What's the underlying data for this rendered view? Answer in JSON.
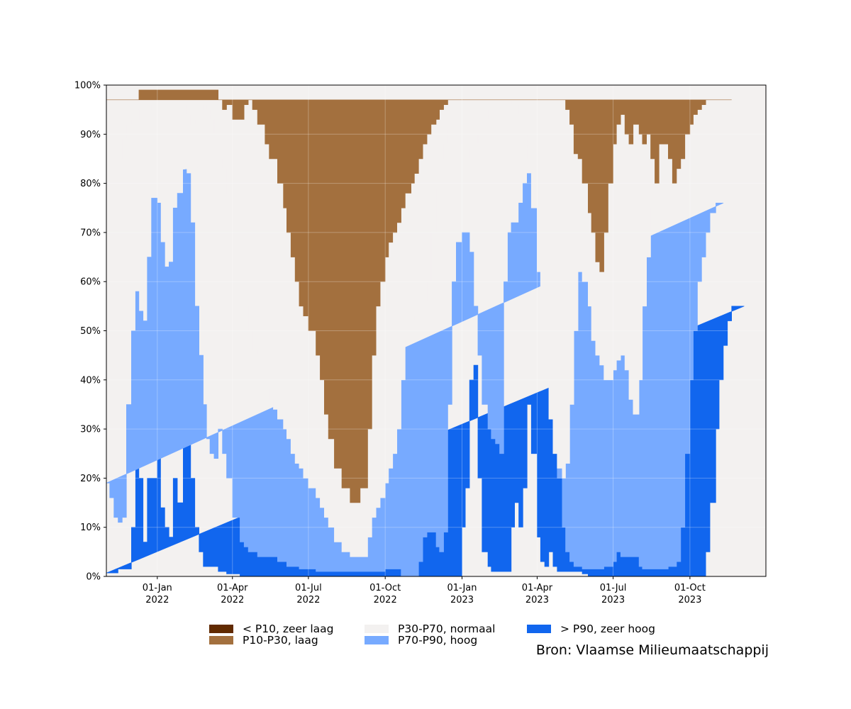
{
  "chart_data": {
    "type": "area",
    "stacked": true,
    "percent": true,
    "title": "",
    "xlabel": "",
    "ylabel": "",
    "x_range": [
      "2021-11-01",
      "2023-12-31"
    ],
    "ylim": [
      0,
      100
    ],
    "yticks": [
      {
        "value": 0,
        "label": "0%"
      },
      {
        "value": 10,
        "label": "10%"
      },
      {
        "value": 20,
        "label": "20%"
      },
      {
        "value": 30,
        "label": "30%"
      },
      {
        "value": 40,
        "label": "40%"
      },
      {
        "value": 50,
        "label": "50%"
      },
      {
        "value": 60,
        "label": "60%"
      },
      {
        "value": 70,
        "label": "70%"
      },
      {
        "value": 80,
        "label": "80%"
      },
      {
        "value": 90,
        "label": "90%"
      },
      {
        "value": 100,
        "label": "100%"
      }
    ],
    "xticks": [
      {
        "date": "2022-01-01",
        "label1": "01-Jan",
        "label2": "2022"
      },
      {
        "date": "2022-04-01",
        "label1": "01-Apr",
        "label2": "2022"
      },
      {
        "date": "2022-07-01",
        "label1": "01-Jul",
        "label2": "2022"
      },
      {
        "date": "2022-10-01",
        "label1": "01-Oct",
        "label2": "2022"
      },
      {
        "date": "2023-01-01",
        "label1": "01-Jan",
        "label2": "2023"
      },
      {
        "date": "2023-04-01",
        "label1": "01-Apr",
        "label2": "2023"
      },
      {
        "date": "2023-07-01",
        "label1": "01-Jul",
        "label2": "2023"
      },
      {
        "date": "2023-10-01",
        "label1": "01-Oct",
        "label2": "2023"
      }
    ],
    "grid": true,
    "legend_position": "bottom",
    "series": [
      {
        "name": "> P90, zeer hoog",
        "color": "#1166ee"
      },
      {
        "name": "P70-P90, hoog",
        "color": "#77aaff"
      },
      {
        "name": "P30-P70, normaal",
        "color": "#f3f1f0"
      },
      {
        "name": "P10-P30, laag",
        "color": "#a3703e"
      },
      {
        "name": "< P10, zeer laag",
        "color": "#612a00"
      }
    ],
    "boundaries_note": "Cumulative boundaries in percent at each date: b1 = top of '> P90', b2 = top of 'P70-P90', b3 = top of 'P30-P70', b4 = top of 'P10-P30'; the remainder up to 100 is '< P10'.",
    "dates": [
      "2021-11-01",
      "2021-11-05",
      "2021-11-10",
      "2021-11-15",
      "2021-11-20",
      "2021-11-25",
      "2021-12-01",
      "2021-12-06",
      "2021-12-10",
      "2021-12-15",
      "2021-12-20",
      "2021-12-25",
      "2022-01-01",
      "2022-01-05",
      "2022-01-10",
      "2022-01-15",
      "2022-01-20",
      "2022-01-25",
      "2022-02-01",
      "2022-02-05",
      "2022-02-10",
      "2022-02-15",
      "2022-02-20",
      "2022-02-25",
      "2022-03-01",
      "2022-03-05",
      "2022-03-10",
      "2022-03-15",
      "2022-03-20",
      "2022-03-25",
      "2022-04-01",
      "2022-04-10",
      "2022-04-15",
      "2022-04-20",
      "2022-04-25",
      "2022-05-01",
      "2022-05-10",
      "2022-05-15",
      "2022-05-20",
      "2022-05-25",
      "2022-06-01",
      "2022-06-05",
      "2022-06-10",
      "2022-06-15",
      "2022-06-20",
      "2022-06-25",
      "2022-07-01",
      "2022-07-10",
      "2022-07-15",
      "2022-07-20",
      "2022-07-25",
      "2022-08-01",
      "2022-08-10",
      "2022-08-20",
      "2022-09-01",
      "2022-09-10",
      "2022-09-15",
      "2022-09-20",
      "2022-09-25",
      "2022-10-01",
      "2022-10-05",
      "2022-10-10",
      "2022-10-15",
      "2022-10-20",
      "2022-10-25",
      "2022-11-01",
      "2022-11-05",
      "2022-11-10",
      "2022-11-15",
      "2022-11-20",
      "2022-11-25",
      "2022-12-01",
      "2022-12-05",
      "2022-12-10",
      "2022-12-15",
      "2022-12-20",
      "2022-12-25",
      "2023-01-01",
      "2023-01-05",
      "2023-01-10",
      "2023-01-15",
      "2023-01-20",
      "2023-01-25",
      "2023-02-01",
      "2023-02-05",
      "2023-02-10",
      "2023-02-15",
      "2023-02-20",
      "2023-02-25",
      "2023-03-01",
      "2023-03-05",
      "2023-03-10",
      "2023-03-15",
      "2023-03-20",
      "2023-03-25",
      "2023-04-01",
      "2023-04-05",
      "2023-04-10",
      "2023-04-15",
      "2023-04-20",
      "2023-04-25",
      "2023-05-01",
      "2023-05-05",
      "2023-05-10",
      "2023-05-15",
      "2023-05-20",
      "2023-05-25",
      "2023-06-01",
      "2023-06-05",
      "2023-06-10",
      "2023-06-15",
      "2023-06-20",
      "2023-06-25",
      "2023-07-01",
      "2023-07-05",
      "2023-07-10",
      "2023-07-15",
      "2023-07-20",
      "2023-07-25",
      "2023-08-01",
      "2023-08-05",
      "2023-08-10",
      "2023-08-15",
      "2023-08-20",
      "2023-08-25",
      "2023-09-01",
      "2023-09-05",
      "2023-09-10",
      "2023-09-15",
      "2023-09-20",
      "2023-09-25",
      "2023-10-01",
      "2023-10-05",
      "2023-10-10",
      "2023-10-15",
      "2023-10-20",
      "2023-10-25",
      "2023-11-01",
      "2023-11-05",
      "2023-11-10",
      "2023-11-15",
      "2023-11-20",
      "2023-11-25",
      "2023-12-01",
      "2023-12-05",
      "2023-12-10",
      "2023-12-15",
      "2023-12-20",
      "2023-12-25",
      "2023-12-31"
    ],
    "b1": [
      0.7,
      0.7,
      0.7,
      1.5,
      1.5,
      1.5,
      10,
      26,
      20,
      7,
      20,
      20,
      35,
      14,
      10,
      8,
      20,
      15,
      38,
      30,
      20,
      10,
      5,
      2,
      2,
      2,
      2,
      1,
      1,
      0.5,
      0.5,
      0,
      0,
      0,
      0,
      0,
      0,
      0,
      0,
      0,
      0,
      0,
      0,
      0,
      0,
      0,
      0,
      0,
      0,
      0,
      0,
      0,
      0,
      0,
      0,
      0,
      0,
      0,
      0,
      0,
      0,
      0,
      0,
      0,
      0,
      0,
      0,
      0,
      0,
      0,
      0,
      0,
      0,
      0,
      0,
      0,
      0,
      10,
      18,
      40,
      43,
      20,
      5,
      2,
      1,
      1,
      1,
      1,
      1,
      10,
      15,
      10,
      18,
      35,
      25,
      8,
      3,
      2,
      5,
      2,
      1,
      1,
      1,
      1,
      1,
      1,
      0.5,
      0,
      0,
      0,
      0,
      0,
      0,
      0,
      0,
      0,
      0,
      0,
      0,
      0,
      0,
      0,
      0,
      0,
      0,
      0,
      0,
      0,
      0,
      0,
      0,
      0,
      0,
      0,
      0,
      5,
      15,
      30,
      40,
      47,
      52,
      55,
      55,
      55
    ],
    "b2": [
      19,
      16,
      12,
      11,
      12,
      35,
      50,
      58,
      54,
      52,
      65,
      77,
      76,
      68,
      63,
      64,
      75,
      78,
      83,
      82,
      72,
      55,
      45,
      35,
      28,
      25,
      24,
      30,
      25,
      20,
      12,
      7,
      6,
      5,
      5,
      4,
      4,
      4,
      4,
      3,
      3,
      2,
      2,
      2,
      1.5,
      1.5,
      1.5,
      1,
      1,
      1,
      1,
      1,
      1,
      1,
      1,
      1,
      1,
      1,
      1,
      1.5,
      1.5,
      1.5,
      1.5,
      0,
      0,
      0,
      0,
      3,
      8,
      9,
      9,
      6,
      5,
      9,
      35,
      60,
      68,
      70,
      70,
      66,
      55,
      45,
      35,
      30,
      28,
      27,
      25,
      60,
      70,
      72,
      72,
      76,
      80,
      82,
      82,
      80,
      76,
      65,
      58,
      45,
      20,
      10,
      5,
      3,
      2,
      2,
      1.5,
      1.5,
      1.5,
      1.5,
      1.5,
      2,
      2,
      3,
      5,
      4,
      4,
      4,
      4,
      2,
      1.5,
      1.5,
      1.5,
      1.5,
      1.5,
      1.5,
      2,
      2,
      3,
      10,
      25,
      40,
      50,
      60,
      65,
      70,
      74,
      76,
      76
    ],
    "b3": [
      81,
      82,
      82,
      85,
      89,
      92,
      93,
      93,
      95,
      95,
      95,
      96,
      96,
      96,
      96,
      96,
      96,
      96,
      96,
      94,
      92,
      93,
      95,
      96,
      95,
      93,
      90,
      85,
      83,
      78,
      68,
      58,
      55,
      50,
      46,
      45,
      38,
      36,
      34,
      32,
      30,
      28,
      25,
      23,
      22,
      20,
      18,
      16,
      14,
      12,
      10,
      7,
      5,
      4,
      4,
      8,
      12,
      14,
      16,
      19,
      22,
      25,
      30,
      40,
      48,
      52,
      53,
      53,
      56,
      60,
      70,
      79,
      85,
      88,
      91,
      90,
      89,
      88,
      87,
      85,
      88,
      90,
      93,
      95,
      96,
      96,
      96,
      96,
      96,
      97,
      96,
      94,
      90,
      85,
      75,
      62,
      48,
      40,
      32,
      25,
      22,
      20,
      23,
      35,
      50,
      62,
      60,
      55,
      48,
      45,
      43,
      40,
      40,
      42,
      44,
      45,
      42,
      36,
      33,
      40,
      55,
      65,
      75,
      80,
      85,
      88,
      90,
      92,
      93,
      95,
      96,
      96,
      96,
      96,
      96,
      96,
      96,
      96,
      96,
      96
    ],
    "b4": [
      97,
      97,
      97,
      97,
      97,
      97,
      97,
      97,
      99,
      99,
      99,
      99,
      99,
      99,
      99,
      99,
      99,
      99,
      99,
      99,
      99,
      99,
      99,
      99,
      99,
      99,
      99,
      97,
      95,
      96,
      93,
      93,
      96,
      97,
      95,
      92,
      88,
      85,
      85,
      80,
      75,
      70,
      65,
      60,
      55,
      53,
      50,
      45,
      40,
      33,
      28,
      22,
      18,
      15,
      18,
      30,
      45,
      55,
      60,
      65,
      68,
      70,
      72,
      75,
      78,
      80,
      82,
      85,
      88,
      90,
      92,
      93,
      95,
      96,
      97,
      97,
      97,
      97,
      97,
      97,
      97,
      97,
      97,
      97,
      97,
      97,
      97,
      97,
      97,
      97,
      97,
      97,
      97,
      97,
      97,
      97,
      97,
      97,
      97,
      97,
      97,
      97,
      95,
      92,
      86,
      85,
      80,
      74,
      70,
      64,
      62,
      70,
      80,
      88,
      92,
      94,
      90,
      88,
      92,
      90,
      88,
      90,
      85,
      80,
      88,
      88,
      85,
      80,
      83,
      85,
      90,
      92,
      94,
      95,
      96,
      97,
      97,
      97,
      97,
      97,
      97
    ]
  },
  "x_tick_labels": [
    {
      "line1": "01-Jan",
      "line2": "2022"
    },
    {
      "line1": "01-Apr",
      "line2": "2022"
    },
    {
      "line1": "01-Jul",
      "line2": "2022"
    },
    {
      "line1": "01-Oct",
      "line2": "2022"
    },
    {
      "line1": "01-Jan",
      "line2": "2023"
    },
    {
      "line1": "01-Apr",
      "line2": "2023"
    },
    {
      "line1": "01-Jul",
      "line2": "2023"
    },
    {
      "line1": "01-Oct",
      "line2": "2023"
    }
  ],
  "legend": {
    "items": [
      {
        "label": "< P10, zeer laag",
        "color": "#612a00"
      },
      {
        "label": "P10-P30, laag",
        "color": "#a3703e"
      },
      {
        "label": "P30-P70, normaal",
        "color": "#f3f1f0"
      },
      {
        "label": "P70-P90, hoog",
        "color": "#77aaff"
      },
      {
        "label": "> P90, zeer hoog",
        "color": "#1166ee"
      }
    ]
  },
  "source": "Bron: Vlaamse Milieumaatschappij"
}
